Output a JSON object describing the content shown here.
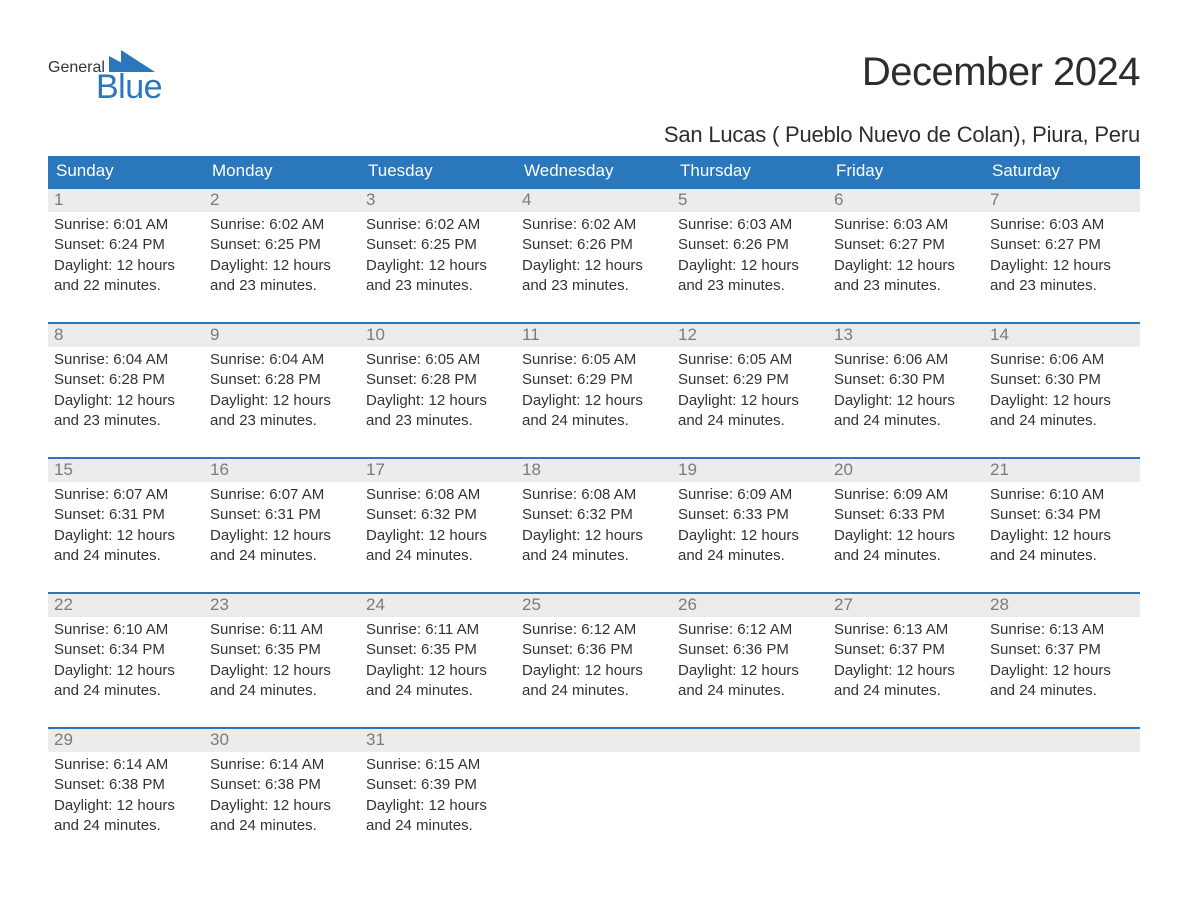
{
  "logo": {
    "general": "General",
    "blue": "Blue",
    "tri_color": "#2a77bb"
  },
  "title": "December 2024",
  "subtitle": "San Lucas ( Pueblo Nuevo de Colan), Piura, Peru",
  "colors": {
    "header_bg": "#2a77bb",
    "header_text": "#ffffff",
    "daynum_bg": "#ececec",
    "daynum_text": "#7b7b7b",
    "body_text": "#333333",
    "row_border": "#2a77bb",
    "page_bg": "#ffffff"
  },
  "daynames": [
    "Sunday",
    "Monday",
    "Tuesday",
    "Wednesday",
    "Thursday",
    "Friday",
    "Saturday"
  ],
  "weeks": [
    [
      {
        "num": "1",
        "sunrise": "Sunrise: 6:01 AM",
        "sunset": "Sunset: 6:24 PM",
        "day1": "Daylight: 12 hours",
        "day2": "and 22 minutes."
      },
      {
        "num": "2",
        "sunrise": "Sunrise: 6:02 AM",
        "sunset": "Sunset: 6:25 PM",
        "day1": "Daylight: 12 hours",
        "day2": "and 23 minutes."
      },
      {
        "num": "3",
        "sunrise": "Sunrise: 6:02 AM",
        "sunset": "Sunset: 6:25 PM",
        "day1": "Daylight: 12 hours",
        "day2": "and 23 minutes."
      },
      {
        "num": "4",
        "sunrise": "Sunrise: 6:02 AM",
        "sunset": "Sunset: 6:26 PM",
        "day1": "Daylight: 12 hours",
        "day2": "and 23 minutes."
      },
      {
        "num": "5",
        "sunrise": "Sunrise: 6:03 AM",
        "sunset": "Sunset: 6:26 PM",
        "day1": "Daylight: 12 hours",
        "day2": "and 23 minutes."
      },
      {
        "num": "6",
        "sunrise": "Sunrise: 6:03 AM",
        "sunset": "Sunset: 6:27 PM",
        "day1": "Daylight: 12 hours",
        "day2": "and 23 minutes."
      },
      {
        "num": "7",
        "sunrise": "Sunrise: 6:03 AM",
        "sunset": "Sunset: 6:27 PM",
        "day1": "Daylight: 12 hours",
        "day2": "and 23 minutes."
      }
    ],
    [
      {
        "num": "8",
        "sunrise": "Sunrise: 6:04 AM",
        "sunset": "Sunset: 6:28 PM",
        "day1": "Daylight: 12 hours",
        "day2": "and 23 minutes."
      },
      {
        "num": "9",
        "sunrise": "Sunrise: 6:04 AM",
        "sunset": "Sunset: 6:28 PM",
        "day1": "Daylight: 12 hours",
        "day2": "and 23 minutes."
      },
      {
        "num": "10",
        "sunrise": "Sunrise: 6:05 AM",
        "sunset": "Sunset: 6:28 PM",
        "day1": "Daylight: 12 hours",
        "day2": "and 23 minutes."
      },
      {
        "num": "11",
        "sunrise": "Sunrise: 6:05 AM",
        "sunset": "Sunset: 6:29 PM",
        "day1": "Daylight: 12 hours",
        "day2": "and 24 minutes."
      },
      {
        "num": "12",
        "sunrise": "Sunrise: 6:05 AM",
        "sunset": "Sunset: 6:29 PM",
        "day1": "Daylight: 12 hours",
        "day2": "and 24 minutes."
      },
      {
        "num": "13",
        "sunrise": "Sunrise: 6:06 AM",
        "sunset": "Sunset: 6:30 PM",
        "day1": "Daylight: 12 hours",
        "day2": "and 24 minutes."
      },
      {
        "num": "14",
        "sunrise": "Sunrise: 6:06 AM",
        "sunset": "Sunset: 6:30 PM",
        "day1": "Daylight: 12 hours",
        "day2": "and 24 minutes."
      }
    ],
    [
      {
        "num": "15",
        "sunrise": "Sunrise: 6:07 AM",
        "sunset": "Sunset: 6:31 PM",
        "day1": "Daylight: 12 hours",
        "day2": "and 24 minutes."
      },
      {
        "num": "16",
        "sunrise": "Sunrise: 6:07 AM",
        "sunset": "Sunset: 6:31 PM",
        "day1": "Daylight: 12 hours",
        "day2": "and 24 minutes."
      },
      {
        "num": "17",
        "sunrise": "Sunrise: 6:08 AM",
        "sunset": "Sunset: 6:32 PM",
        "day1": "Daylight: 12 hours",
        "day2": "and 24 minutes."
      },
      {
        "num": "18",
        "sunrise": "Sunrise: 6:08 AM",
        "sunset": "Sunset: 6:32 PM",
        "day1": "Daylight: 12 hours",
        "day2": "and 24 minutes."
      },
      {
        "num": "19",
        "sunrise": "Sunrise: 6:09 AM",
        "sunset": "Sunset: 6:33 PM",
        "day1": "Daylight: 12 hours",
        "day2": "and 24 minutes."
      },
      {
        "num": "20",
        "sunrise": "Sunrise: 6:09 AM",
        "sunset": "Sunset: 6:33 PM",
        "day1": "Daylight: 12 hours",
        "day2": "and 24 minutes."
      },
      {
        "num": "21",
        "sunrise": "Sunrise: 6:10 AM",
        "sunset": "Sunset: 6:34 PM",
        "day1": "Daylight: 12 hours",
        "day2": "and 24 minutes."
      }
    ],
    [
      {
        "num": "22",
        "sunrise": "Sunrise: 6:10 AM",
        "sunset": "Sunset: 6:34 PM",
        "day1": "Daylight: 12 hours",
        "day2": "and 24 minutes."
      },
      {
        "num": "23",
        "sunrise": "Sunrise: 6:11 AM",
        "sunset": "Sunset: 6:35 PM",
        "day1": "Daylight: 12 hours",
        "day2": "and 24 minutes."
      },
      {
        "num": "24",
        "sunrise": "Sunrise: 6:11 AM",
        "sunset": "Sunset: 6:35 PM",
        "day1": "Daylight: 12 hours",
        "day2": "and 24 minutes."
      },
      {
        "num": "25",
        "sunrise": "Sunrise: 6:12 AM",
        "sunset": "Sunset: 6:36 PM",
        "day1": "Daylight: 12 hours",
        "day2": "and 24 minutes."
      },
      {
        "num": "26",
        "sunrise": "Sunrise: 6:12 AM",
        "sunset": "Sunset: 6:36 PM",
        "day1": "Daylight: 12 hours",
        "day2": "and 24 minutes."
      },
      {
        "num": "27",
        "sunrise": "Sunrise: 6:13 AM",
        "sunset": "Sunset: 6:37 PM",
        "day1": "Daylight: 12 hours",
        "day2": "and 24 minutes."
      },
      {
        "num": "28",
        "sunrise": "Sunrise: 6:13 AM",
        "sunset": "Sunset: 6:37 PM",
        "day1": "Daylight: 12 hours",
        "day2": "and 24 minutes."
      }
    ],
    [
      {
        "num": "29",
        "sunrise": "Sunrise: 6:14 AM",
        "sunset": "Sunset: 6:38 PM",
        "day1": "Daylight: 12 hours",
        "day2": "and 24 minutes."
      },
      {
        "num": "30",
        "sunrise": "Sunrise: 6:14 AM",
        "sunset": "Sunset: 6:38 PM",
        "day1": "Daylight: 12 hours",
        "day2": "and 24 minutes."
      },
      {
        "num": "31",
        "sunrise": "Sunrise: 6:15 AM",
        "sunset": "Sunset: 6:39 PM",
        "day1": "Daylight: 12 hours",
        "day2": "and 24 minutes."
      },
      null,
      null,
      null,
      null
    ]
  ]
}
